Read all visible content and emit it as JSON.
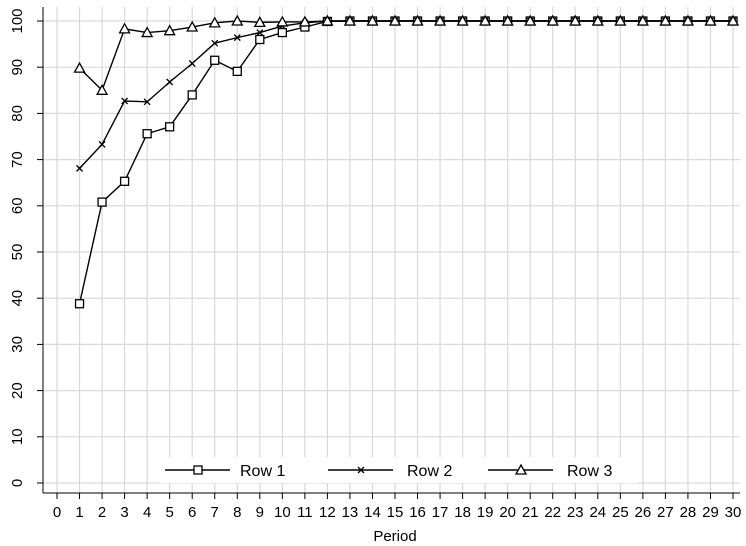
{
  "chart_data": {
    "type": "line",
    "title": "",
    "xlabel": "Period",
    "ylabel": "",
    "xlim": [
      0,
      30
    ],
    "ylim": [
      0,
      100
    ],
    "xticks": [
      0,
      1,
      2,
      3,
      4,
      5,
      6,
      7,
      8,
      9,
      10,
      11,
      12,
      13,
      14,
      15,
      16,
      17,
      18,
      19,
      20,
      21,
      22,
      23,
      24,
      25,
      26,
      27,
      28,
      29,
      30
    ],
    "yticks": [
      0,
      10,
      20,
      30,
      40,
      50,
      60,
      70,
      80,
      90,
      100
    ],
    "grid": true,
    "legend_position": "bottom-inside",
    "x": [
      1,
      2,
      3,
      4,
      5,
      6,
      7,
      8,
      9,
      10,
      11,
      12,
      13,
      14,
      15,
      16,
      17,
      18,
      19,
      20,
      21,
      22,
      23,
      24,
      25,
      26,
      27,
      28,
      29,
      30
    ],
    "series": [
      {
        "name": "Row 1",
        "marker": "square",
        "values": [
          38.8,
          60.8,
          65.3,
          75.6,
          77.1,
          84.0,
          91.5,
          89.1,
          96.0,
          97.5,
          98.7,
          99.9,
          100,
          100,
          100,
          100,
          100,
          100,
          100,
          100,
          100,
          100,
          100,
          100,
          100,
          100,
          100,
          100,
          100,
          100
        ]
      },
      {
        "name": "Row 2",
        "marker": "x",
        "values": [
          68.1,
          73.3,
          82.7,
          82.5,
          86.8,
          90.8,
          95.2,
          96.4,
          97.5,
          98.9,
          99.6,
          100,
          100,
          100,
          100,
          100,
          100,
          100,
          100,
          100,
          100,
          100,
          100,
          100,
          100,
          100,
          100,
          100,
          100,
          100
        ]
      },
      {
        "name": "Row 3",
        "marker": "triangle",
        "values": [
          89.8,
          85.0,
          98.3,
          97.5,
          97.9,
          98.7,
          99.6,
          100,
          99.7,
          99.8,
          99.8,
          100,
          100,
          100,
          100,
          100,
          100,
          100,
          100,
          100,
          100,
          100,
          100,
          100,
          100,
          100,
          100,
          100,
          100,
          100
        ]
      }
    ],
    "colors": {
      "line": "#000000",
      "grid": "#d9d9d9",
      "axis": "#000000",
      "background": "#ffffff"
    }
  }
}
